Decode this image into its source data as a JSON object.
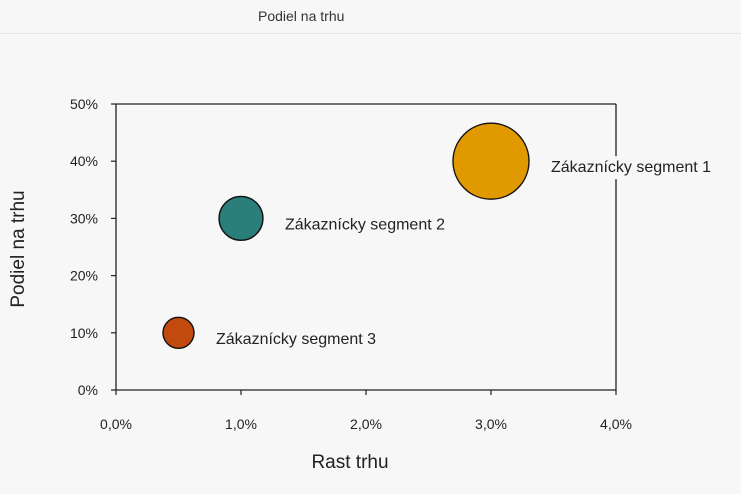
{
  "tab": {
    "title": "Podiel na trhu"
  },
  "chart_data": {
    "type": "scatter",
    "subtype": "bubble",
    "xlabel": "Rast trhu",
    "ylabel": "Podiel na trhu",
    "xlim": [
      0,
      0.04
    ],
    "ylim": [
      0,
      0.5
    ],
    "x_ticks": [
      "0,0%",
      "1,0%",
      "2,0%",
      "3,0%",
      "4,0%"
    ],
    "y_ticks": [
      "0%",
      "10%",
      "20%",
      "30%",
      "40%",
      "50%"
    ],
    "grid": false,
    "legend": "none",
    "series": [
      {
        "name": "Zákaznícky segment 1",
        "x": 0.03,
        "y": 0.4,
        "size": 3.0,
        "color": "#e09a00"
      },
      {
        "name": "Zákaznícky segment 2",
        "x": 0.01,
        "y": 0.3,
        "size": 1.0,
        "color": "#2a7f7a"
      },
      {
        "name": "Zákaznícky segment 3",
        "x": 0.005,
        "y": 0.1,
        "size": 0.5,
        "color": "#c24a0e"
      }
    ]
  }
}
